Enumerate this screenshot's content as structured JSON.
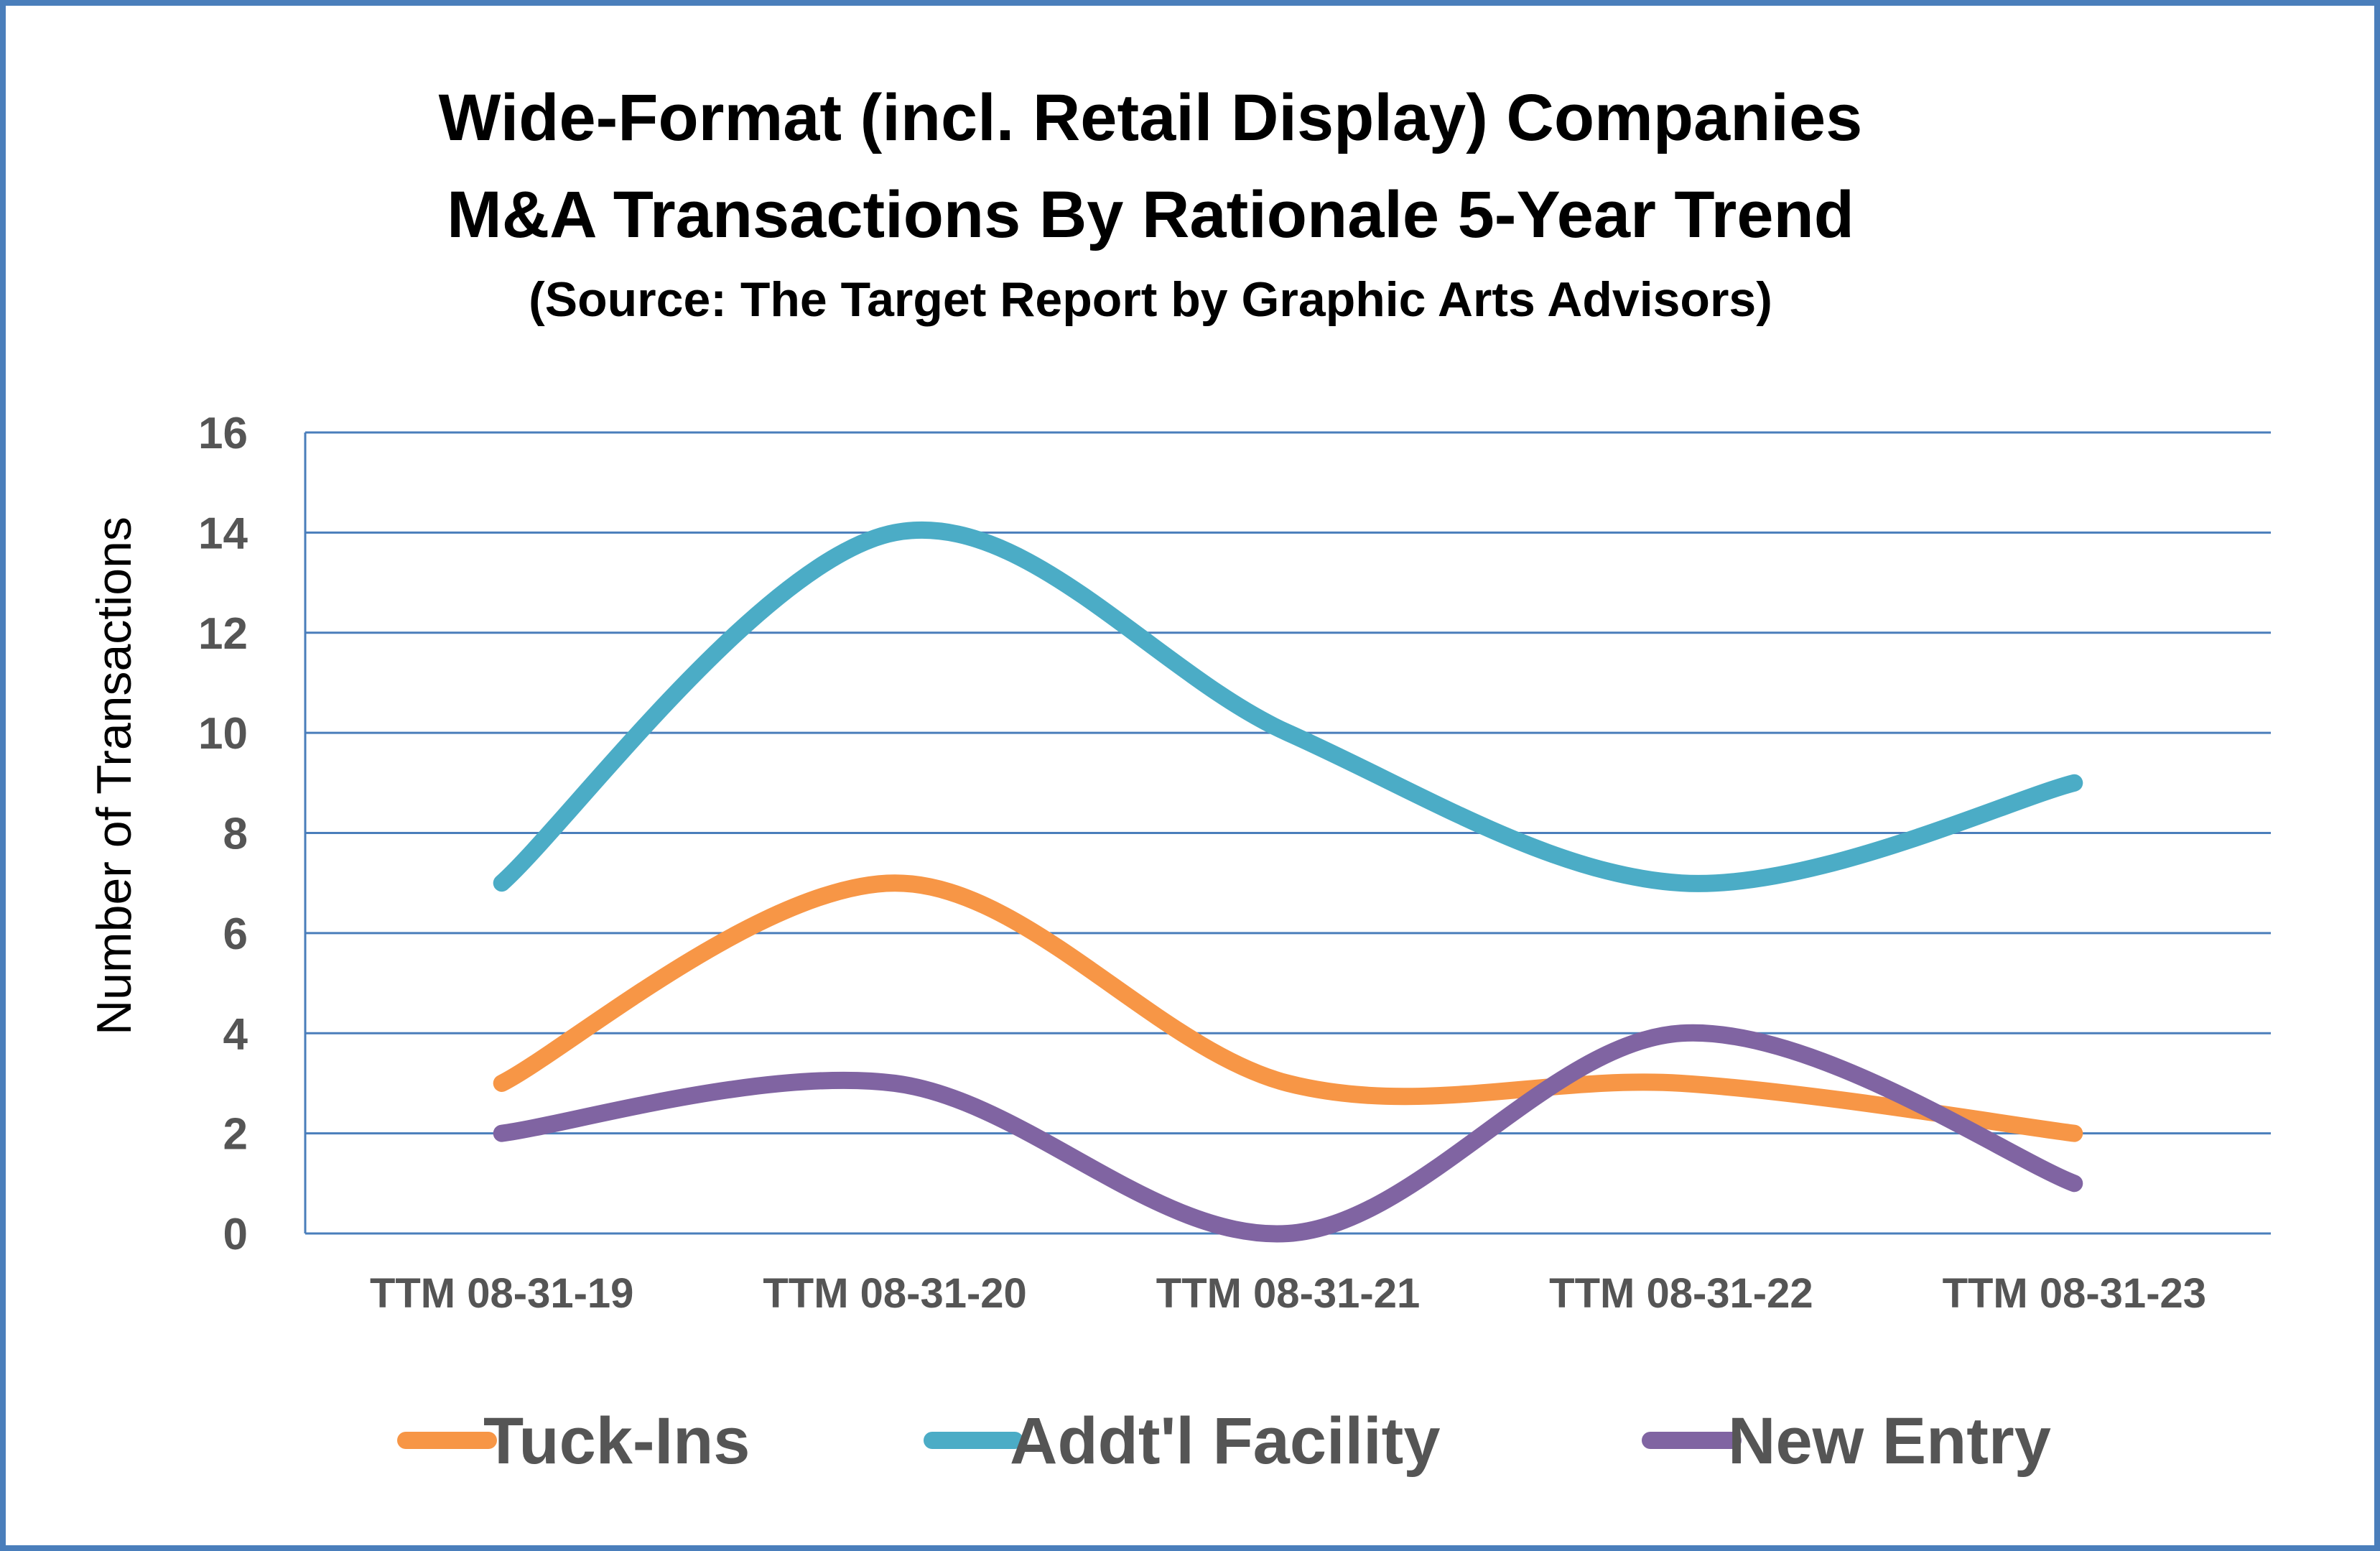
{
  "chart_data": {
    "type": "line",
    "title_lines": [
      "Wide-Format (incl. Retail Display) Companies",
      "M&A Transactions By Rationale 5-Year Trend"
    ],
    "subtitle": "(Source: The Target Report by Graphic Arts Advisors)",
    "ylabel": "Number of Transactions",
    "xlabel": "",
    "categories": [
      "TTM 08-31-19",
      "TTM 08-31-20",
      "TTM 08-31-21",
      "TTM 08-31-22",
      "TTM 08-31-23"
    ],
    "ylim": [
      0,
      16
    ],
    "yticks": [
      0,
      2,
      4,
      6,
      8,
      10,
      12,
      14,
      16
    ],
    "grid": true,
    "smooth": true,
    "legend_position": "bottom",
    "series": [
      {
        "name": "Tuck-Ins",
        "color": "#f79646",
        "values": [
          3,
          7,
          3,
          3,
          2
        ]
      },
      {
        "name": "Addt'l Facility",
        "color": "#4bacc6",
        "values": [
          7,
          14,
          10,
          7,
          9
        ]
      },
      {
        "name": "New Entry",
        "color": "#8064a2",
        "values": [
          2,
          3,
          0,
          4,
          1
        ]
      }
    ]
  },
  "colors": {
    "frame_border": "#4a7ebb",
    "gridline": "#4a7ebb",
    "tick_text": "#555555"
  }
}
